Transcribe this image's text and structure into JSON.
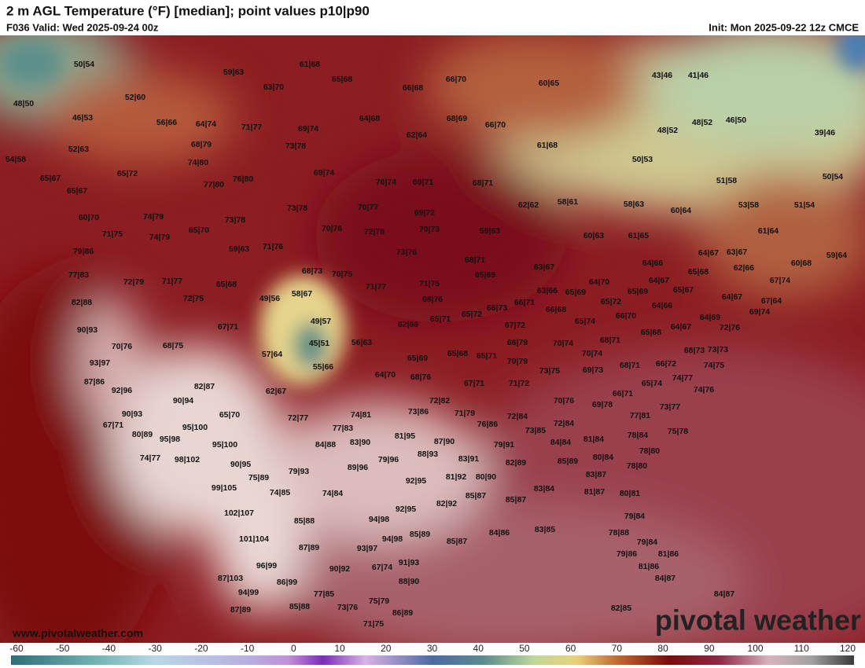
{
  "header": {
    "title": "2 m AGL Temperature (°F) [median]; point values p10|p90",
    "valid": "F036 Valid: Wed 2025-09-24 00z",
    "init": "Init: Mon 2025-09-22 12z CMCE"
  },
  "footer": {
    "website": "www.pivotalweather.com",
    "logo": "pivotal weather"
  },
  "colorbar": {
    "ticks": [
      -60,
      -50,
      -40,
      -30,
      -20,
      -10,
      0,
      10,
      20,
      30,
      40,
      50,
      60,
      70,
      80,
      90,
      100,
      110,
      120
    ]
  },
  "point_values": [
    "50|54",
    "48|50",
    "46|53",
    "52|60",
    "59|63",
    "61|68",
    "65|68",
    "63|70",
    "66|70",
    "66|68",
    "60|65",
    "43|46",
    "41|46",
    "56|66",
    "64|74",
    "71|77",
    "69|74",
    "64|68",
    "62|64",
    "68|69",
    "66|70",
    "48|52",
    "48|52",
    "46|50",
    "39|46",
    "52|63",
    "68|79",
    "73|78",
    "61|68",
    "50|53",
    "54|58",
    "74|80",
    "65|72",
    "65|67",
    "76|80",
    "69|74",
    "70|74",
    "69|71",
    "68|71",
    "77|80",
    "51|58",
    "50|54",
    "65|67",
    "62|62",
    "58|61",
    "58|63",
    "60|64",
    "53|58",
    "51|54",
    "60|70",
    "74|79",
    "73|78",
    "73|78",
    "70|77",
    "69|72",
    "65|70",
    "70|76",
    "72|78",
    "70|73",
    "59|63",
    "61|64",
    "71|75",
    "74|79",
    "60|63",
    "61|65",
    "59|63",
    "71|76",
    "73|76",
    "79|86",
    "64|67",
    "63|67",
    "59|64",
    "68|71",
    "64|66",
    "60|68",
    "77|83",
    "68|73",
    "70|75",
    "65|69",
    "63|67",
    "62|66",
    "65|68",
    "64|70",
    "64|67",
    "67|74",
    "72|79",
    "71|77",
    "65|68",
    "71|77",
    "71|75",
    "63|66",
    "65|69",
    "65|69",
    "65|67",
    "49|56",
    "58|67",
    "68|76",
    "65|72",
    "64|66",
    "64|67",
    "67|64",
    "82|88",
    "72|75",
    "66|71",
    "66|68",
    "66|73",
    "65|72",
    "66|70",
    "64|69",
    "69|74",
    "65|71",
    "65|74",
    "62|66",
    "49|57",
    "64|67",
    "72|76",
    "67|71",
    "67|72",
    "65|68",
    "90|93",
    "68|71",
    "70|76",
    "68|75",
    "45|51",
    "56|63",
    "66|79",
    "70|74",
    "70|74",
    "68|73",
    "73|73",
    "57|64",
    "65|69",
    "65|68",
    "65|71",
    "70|79",
    "93|97",
    "55|66",
    "69|73",
    "73|75",
    "68|71",
    "66|72",
    "74|75",
    "64|70",
    "68|76",
    "74|77",
    "87|86",
    "67|71",
    "71|72",
    "65|74",
    "82|87",
    "92|96",
    "62|67",
    "66|71",
    "74|76",
    "90|94",
    "72|82",
    "70|76",
    "69|78",
    "73|77",
    "74|81",
    "73|86",
    "71|79",
    "65|70",
    "72|77",
    "72|84",
    "77|81",
    "67|71",
    "90|93",
    "76|86",
    "72|84",
    "95|100",
    "77|83",
    "73|85",
    "75|78",
    "80|89",
    "95|98",
    "81|95",
    "87|90",
    "84|84",
    "81|84",
    "78|84",
    "84|88",
    "83|90",
    "79|91",
    "95|100",
    "74|77",
    "98|102",
    "88|93",
    "79|96",
    "83|91",
    "78|80",
    "80|84",
    "85|89",
    "82|89",
    "90|95",
    "89|96",
    "78|80",
    "79|93",
    "75|89",
    "92|95",
    "81|92",
    "80|90",
    "83|87",
    "99|105",
    "74|85",
    "74|84",
    "85|87",
    "83|84",
    "81|87",
    "80|81",
    "82|92",
    "85|87",
    "92|95",
    "102|107",
    "79|84",
    "85|88",
    "94|98",
    "84|86",
    "83|85",
    "78|88",
    "101|104",
    "85|89",
    "94|98",
    "85|87",
    "87|89",
    "93|97",
    "79|84",
    "79|86",
    "81|86",
    "96|99",
    "91|93",
    "90|92",
    "67|74",
    "81|86",
    "87|103",
    "86|99",
    "88|90",
    "84|87",
    "84|87",
    "94|99",
    "77|85",
    "75|79",
    "87|89",
    "85|88",
    "73|76",
    "86|89",
    "82|85",
    "71|75"
  ]
}
